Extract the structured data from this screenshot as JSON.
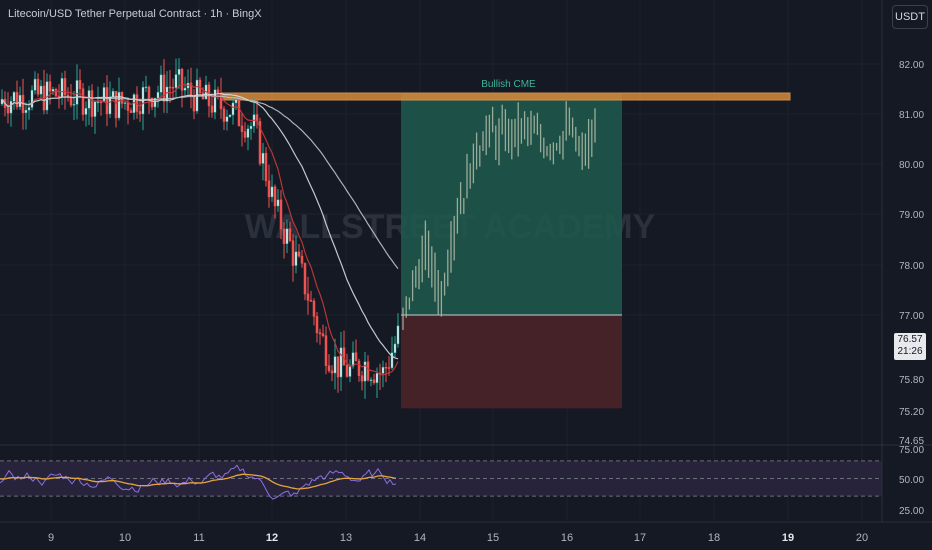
{
  "header": {
    "title": "Litecoin/USD Tether Perpetual Contract · 1h · BingX",
    "currency_button": "USDT"
  },
  "last_price": {
    "value": "76.57",
    "countdown": "21:26"
  },
  "watermark": "WALLSTREET ACADEMY",
  "annotation": {
    "label": "Bullish CME"
  },
  "colors": {
    "up": "#26a69a",
    "down": "#ef5350",
    "resistance": "#d98a3a",
    "profit_zone": "#1f5a4c",
    "loss_zone": "#4a2229",
    "projection": "#a8b5a3",
    "rsi_line": "#8d6fe0",
    "rsi_ma": "#e5a53a"
  },
  "chart_data": {
    "type": "candlestick",
    "price_axis": {
      "ticks": [
        "82.00",
        "81.00",
        "80.00",
        "79.00",
        "78.00",
        "77.00",
        "75.80",
        "75.20",
        "74.65"
      ],
      "tick_values": [
        82.0,
        81.0,
        80.0,
        79.0,
        78.0,
        77.0,
        75.8,
        75.2,
        74.65
      ]
    },
    "time_axis": {
      "ticks": [
        "9",
        "10",
        "11",
        "12",
        "13",
        "14",
        "15",
        "16",
        "17",
        "18",
        "19",
        "20"
      ],
      "bold": [
        "12",
        "19"
      ]
    },
    "resistance_zone": {
      "low": 81.28,
      "high": 81.42
    },
    "position": {
      "entry": 77.0,
      "target": 81.4,
      "stop": 75.25
    },
    "moving_averages": [
      "slow-white",
      "medium-white",
      "fast-red"
    ],
    "rsi": {
      "ticks": [
        "75.00",
        "50.00",
        "25.00"
      ],
      "levels": [
        70,
        50,
        30
      ],
      "range": [
        20,
        80
      ]
    }
  }
}
